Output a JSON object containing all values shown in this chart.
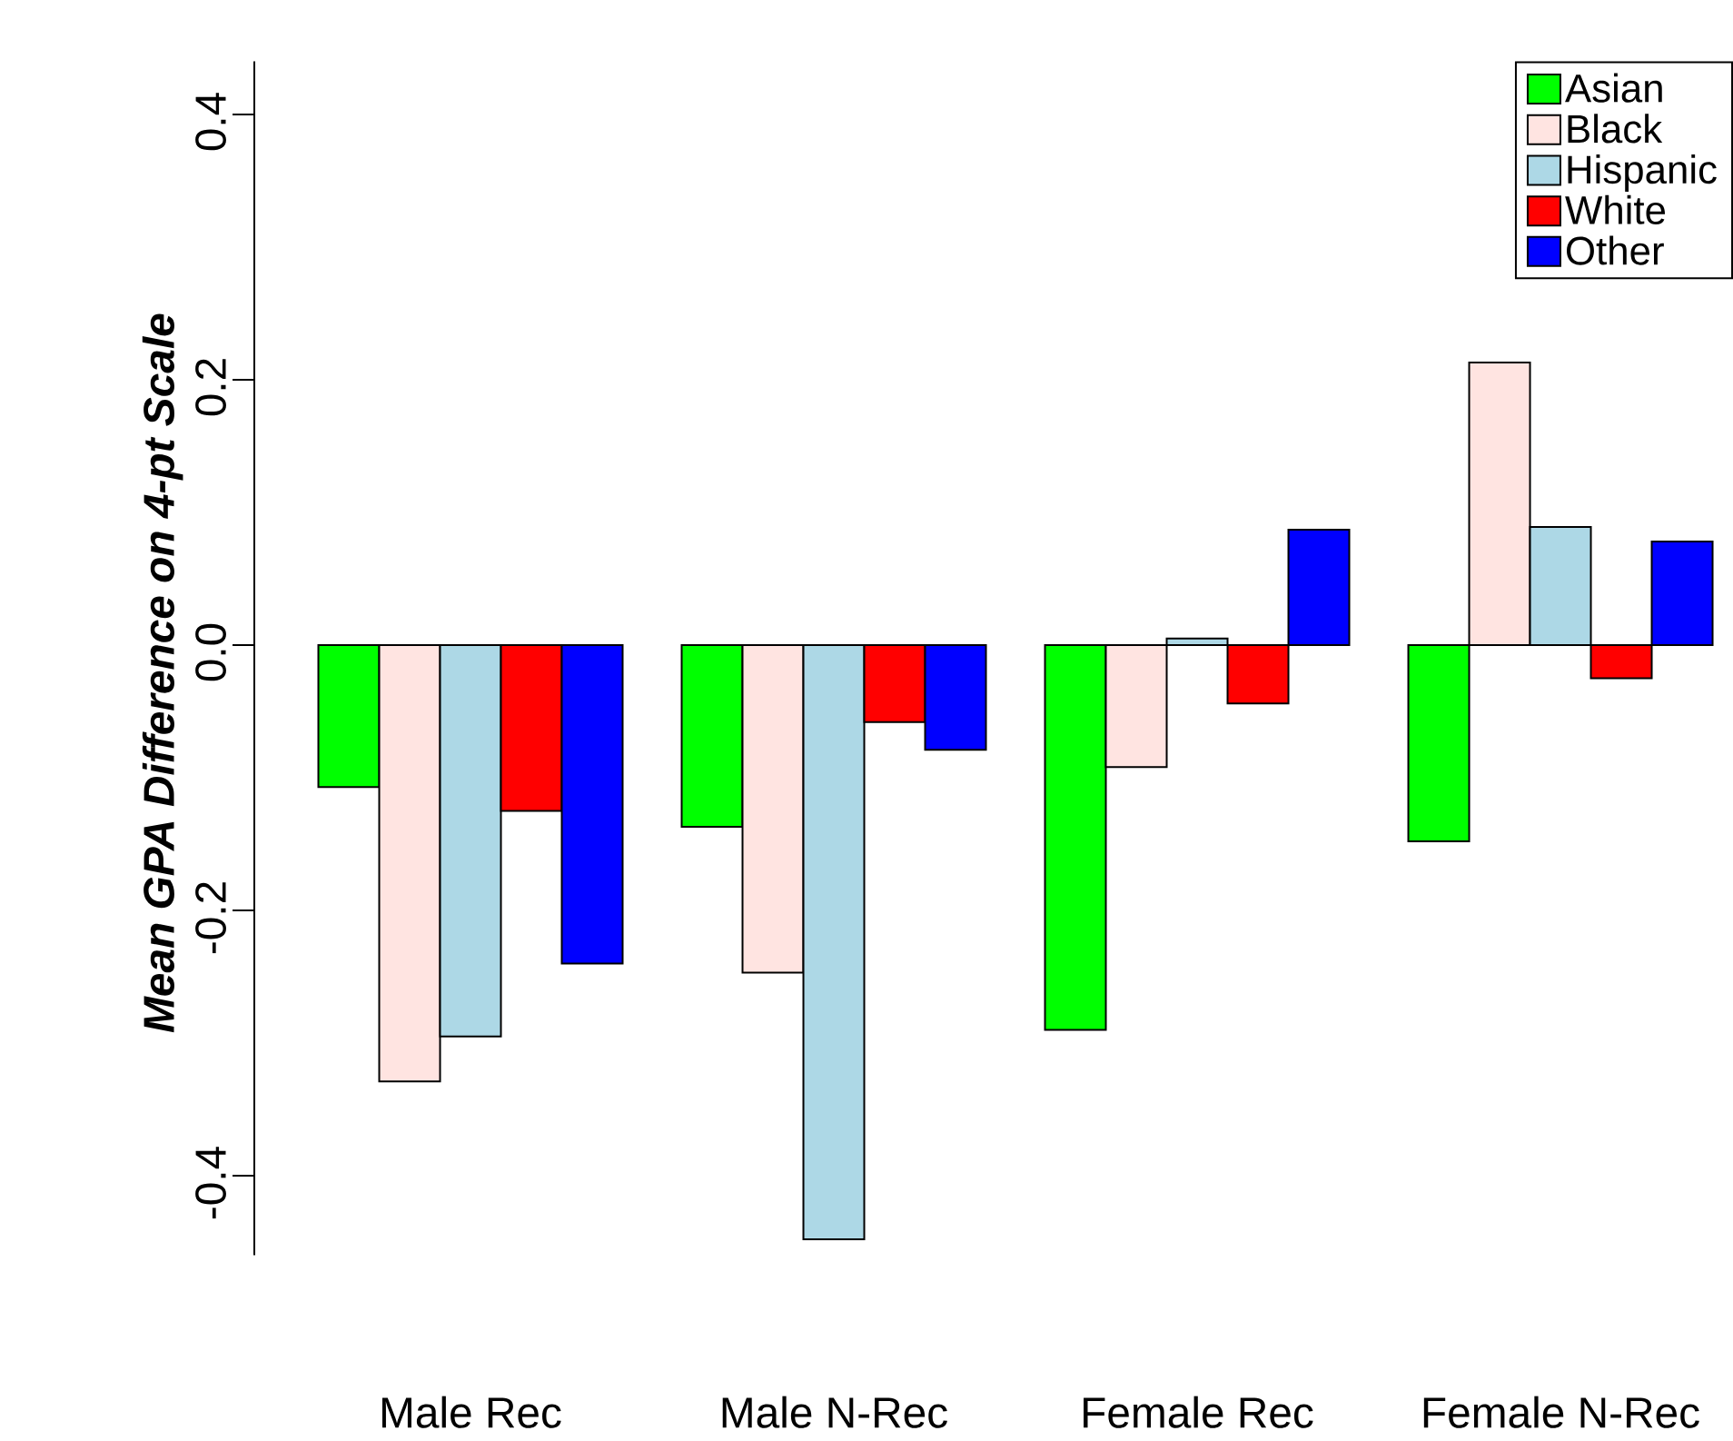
{
  "chart_data": {
    "type": "bar",
    "ylabel": "Mean GPA Difference on 4-pt Scale",
    "categories": [
      "Male Rec",
      "Male N-Rec",
      "Female Rec",
      "Female N-Rec"
    ],
    "series": [
      {
        "name": "Asian",
        "color": "#00ff00",
        "values": [
          -0.107,
          -0.137,
          -0.29,
          -0.148
        ]
      },
      {
        "name": "Black",
        "color": "#ffe4e1",
        "values": [
          -0.329,
          -0.247,
          -0.092,
          0.213
        ]
      },
      {
        "name": "Hispanic",
        "color": "#add8e6",
        "values": [
          -0.295,
          -0.448,
          0.005,
          0.089
        ]
      },
      {
        "name": "White",
        "color": "#ff0000",
        "values": [
          -0.125,
          -0.058,
          -0.044,
          -0.025
        ]
      },
      {
        "name": "Other",
        "color": "#0000ff",
        "values": [
          -0.24,
          -0.079,
          0.087,
          0.078
        ]
      }
    ],
    "ylim": [
      -0.46,
      0.44
    ],
    "yticks": [
      {
        "value": -0.4,
        "label": "-0.4"
      },
      {
        "value": -0.2,
        "label": "-0.2"
      },
      {
        "value": 0,
        "label": "0.0"
      },
      {
        "value": 0.2,
        "label": "0.2"
      },
      {
        "value": 0.4,
        "label": "0.4"
      }
    ],
    "legend": "top right"
  }
}
